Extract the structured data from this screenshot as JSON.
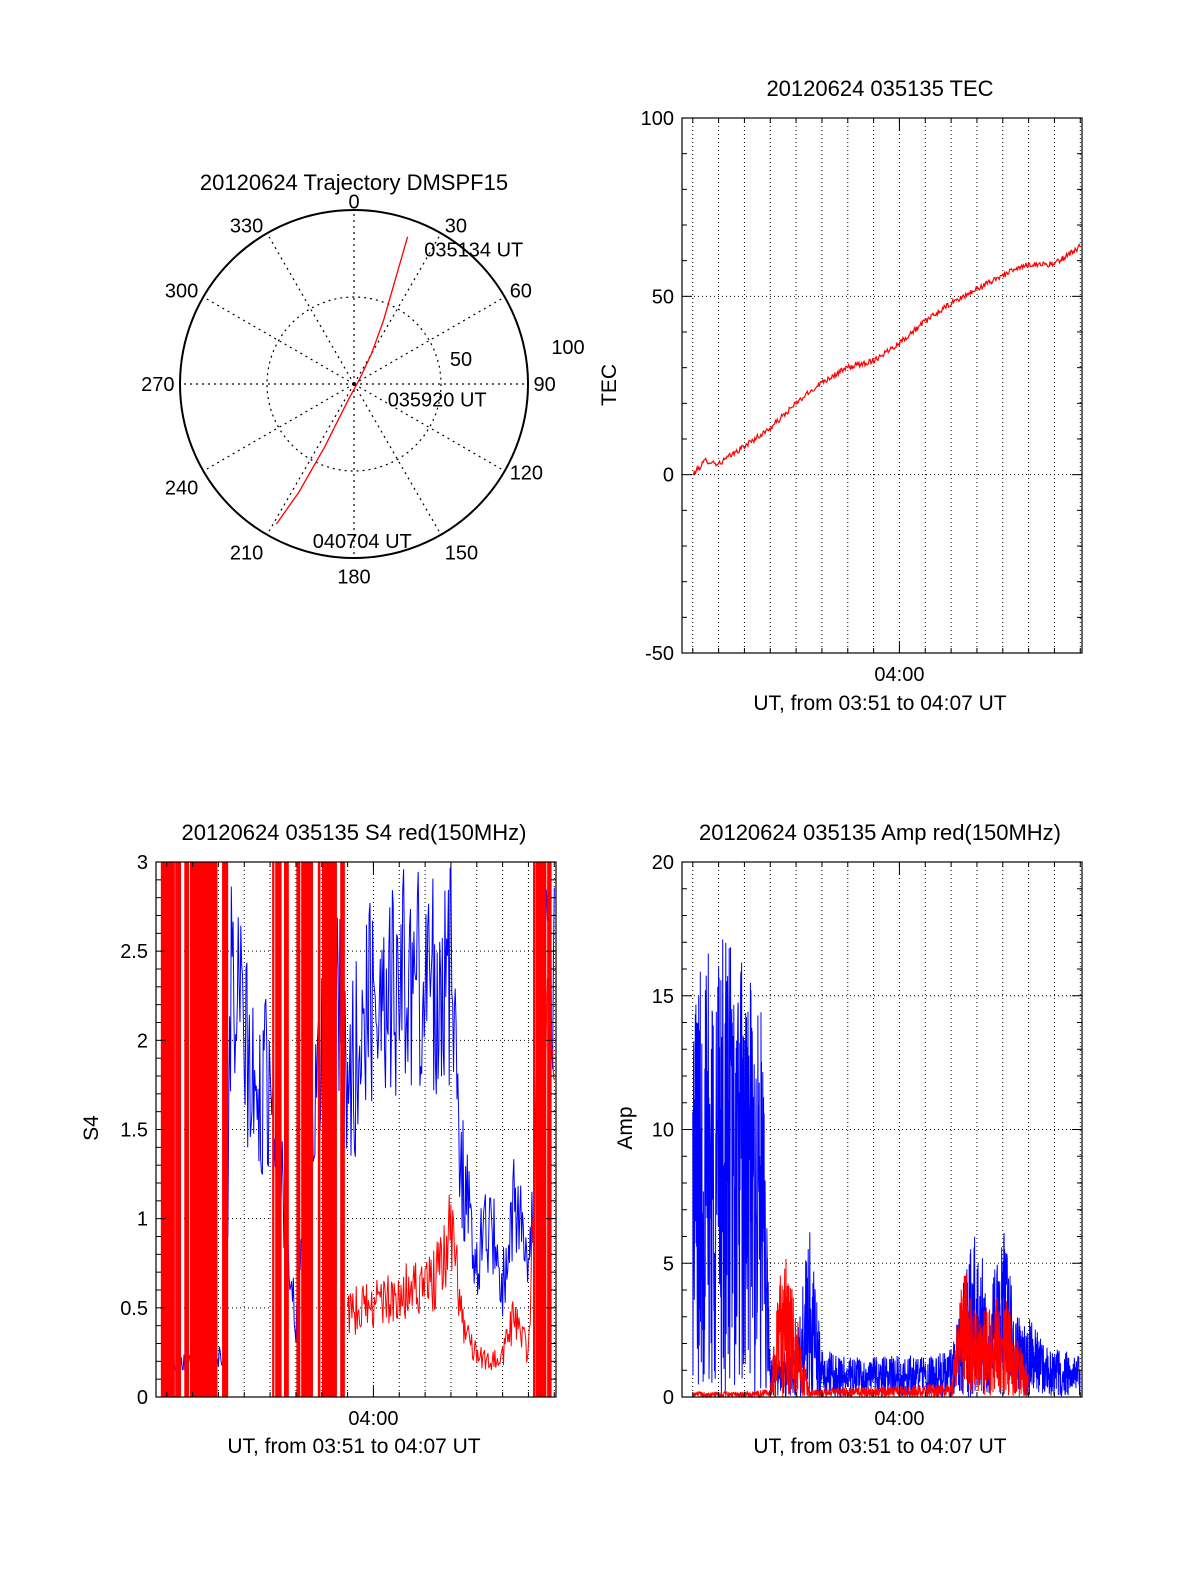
{
  "figure": {
    "background": "#ffffff",
    "axis_color": "#000000",
    "grid_color": "#000000"
  },
  "chart_data": [
    {
      "id": "trajectory",
      "type": "polar",
      "title": "20120624 Trajectory DMSPF15",
      "azimuth_labels": [
        "0",
        "30",
        "60",
        "90",
        "120",
        "150",
        "180",
        "210",
        "240",
        "270",
        "300",
        "330"
      ],
      "radius_labels": [
        "50",
        "100"
      ],
      "rlim": [
        0,
        100
      ],
      "grid": true,
      "series": [
        {
          "color": "#ff0000",
          "points": [
            {
              "az": 20,
              "r": 90
            },
            {
              "az": 22,
              "r": 60
            },
            {
              "az": 25,
              "r": 40
            },
            {
              "az": 30,
              "r": 20
            },
            {
              "az": 45,
              "r": 5
            },
            {
              "az": 200,
              "r": 10
            },
            {
              "az": 205,
              "r": 40
            },
            {
              "az": 207,
              "r": 70
            },
            {
              "az": 209,
              "r": 92
            }
          ]
        }
      ],
      "annotations": [
        {
          "text": "035134 UT",
          "az": 30,
          "r": 90
        },
        {
          "text": "035920 UT",
          "az": 100,
          "r": 22
        },
        {
          "text": "040704 UT",
          "az": 190,
          "r": 90
        }
      ]
    },
    {
      "id": "tec",
      "type": "line",
      "title": "20120624 035135 TEC",
      "xlabel": "UT, from 03:51 to 04:07 UT",
      "ylabel": "TEC",
      "xlim": [
        "03:51:35",
        "04:07:04"
      ],
      "ylim": [
        -50,
        100
      ],
      "yticks": [
        "-50",
        "0",
        "50",
        "100"
      ],
      "xticks": [
        {
          "at": "04:00",
          "label": "04:00"
        }
      ],
      "grid": true,
      "series": [
        {
          "color": "#ff0000",
          "x": [
            "03:52:00",
            "03:52:30",
            "03:53:00",
            "03:54:00",
            "03:55:00",
            "03:56:00",
            "03:57:00",
            "03:58:00",
            "03:59:00",
            "04:00:00",
            "04:01:00",
            "04:02:00",
            "04:03:00",
            "04:04:00",
            "04:05:00",
            "04:06:00",
            "04:07:00"
          ],
          "y": [
            0,
            4,
            3,
            8,
            13,
            20,
            26,
            30,
            32,
            37,
            43,
            48,
            52,
            56,
            59,
            59,
            64
          ]
        }
      ]
    },
    {
      "id": "s4",
      "type": "line",
      "title": "20120624 035135 S4 red(150MHz)",
      "xlabel": "UT, from 03:51 to 04:07 UT",
      "ylabel": "S4",
      "xlim": [
        "03:51:35",
        "04:07:04"
      ],
      "ylim": [
        0,
        3
      ],
      "yticks": [
        "0",
        "0.5",
        "1",
        "1.5",
        "2",
        "2.5",
        "3"
      ],
      "xticks": [
        {
          "at": "04:00",
          "label": "04:00"
        }
      ],
      "grid": true,
      "series": [
        {
          "color": "#0000ff",
          "x": [
            "03:52:00",
            "03:52:45",
            "03:53:30",
            "03:54:15",
            "03:54:30",
            "03:55:00",
            "03:55:30",
            "03:56:00",
            "03:57:00",
            "03:58:00",
            "03:58:30",
            "03:59:00",
            "04:00:00",
            "04:01:00",
            "04:02:00",
            "04:02:30",
            "04:03:00",
            "04:03:30",
            "04:04:00",
            "04:04:30",
            "04:05:00",
            "04:05:30",
            "04:06:00",
            "04:06:30",
            "04:07:00"
          ],
          "y": [
            0.25,
            0.27,
            0.29,
            0.3,
            3.0,
            2.6,
            2.0,
            2.4,
            0.5,
            2.6,
            3.0,
            2.2,
            3.0,
            3.0,
            3.0,
            3.0,
            3.0,
            1.5,
            1.0,
            1.3,
            0.8,
            1.5,
            0.8,
            3.0,
            3.0
          ]
        },
        {
          "color": "#ff0000",
          "x": [
            "03:59:00",
            "04:02:00",
            "04:02:30",
            "04:03:00",
            "04:03:30",
            "04:04:00",
            "04:04:30",
            "04:05:00",
            "04:05:30",
            "04:06:00",
            "04:06:30",
            "04:07:00"
          ],
          "y": [
            0.6,
            0.8,
            0.9,
            1.2,
            0.5,
            0.3,
            0.25,
            0.3,
            0.6,
            0.3,
            3.0,
            3.0
          ]
        }
      ]
    },
    {
      "id": "amp",
      "type": "line",
      "title": "20120624 035135 Amp red(150MHz)",
      "xlabel": "UT, from 03:51 to 04:07 UT",
      "ylabel": "Amp",
      "xlim": [
        "03:51:35",
        "04:07:04"
      ],
      "ylim": [
        0,
        20
      ],
      "yticks": [
        "0",
        "5",
        "10",
        "15",
        "20"
      ],
      "xticks": [
        {
          "at": "04:00",
          "label": "04:00"
        }
      ],
      "grid": true,
      "series": [
        {
          "color": "#0000ff",
          "x": [
            "03:52:00",
            "03:53:00",
            "03:54:00",
            "03:54:40",
            "03:55:00",
            "03:56:00",
            "03:56:30",
            "03:57:00",
            "03:58:00",
            "03:59:00",
            "04:00:00",
            "04:01:00",
            "04:02:00",
            "04:02:30",
            "04:03:00",
            "04:03:30",
            "04:04:00",
            "04:04:30",
            "04:05:00",
            "04:06:00",
            "04:07:00"
          ],
          "y": [
            16,
            17.5,
            16.5,
            14.5,
            1.5,
            2.0,
            6.5,
            1.8,
            1.5,
            1.5,
            1.6,
            1.5,
            1.8,
            4.5,
            6.5,
            3.5,
            7.0,
            3.0,
            3.0,
            1.8,
            1.6
          ]
        },
        {
          "color": "#ff0000",
          "x": [
            "03:52:00",
            "03:54:00",
            "03:55:00",
            "03:55:30",
            "03:56:30",
            "04:02:00",
            "04:02:30",
            "04:03:00",
            "04:04:00",
            "04:05:00"
          ],
          "y": [
            0.2,
            0.2,
            0.3,
            6.3,
            0.3,
            0.5,
            5.5,
            3.0,
            4.0,
            1.0
          ]
        }
      ]
    }
  ]
}
